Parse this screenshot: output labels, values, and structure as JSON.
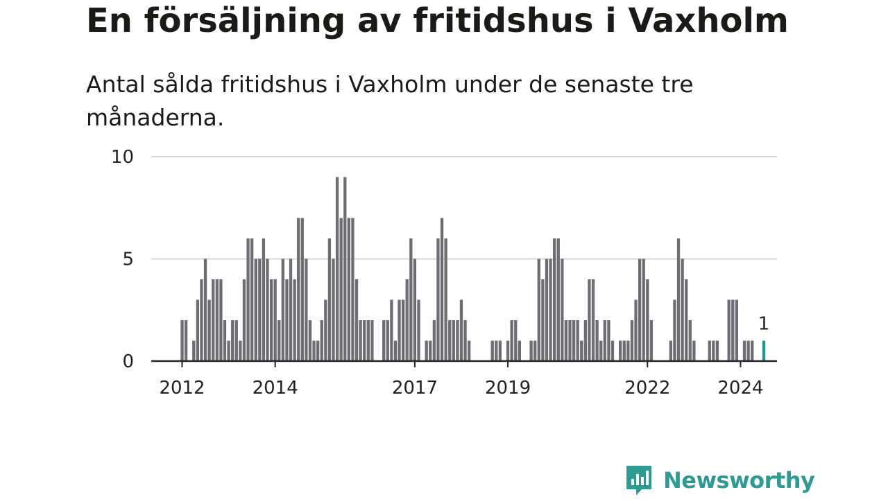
{
  "title": "En försäljning av fritidshus i Vaxholm",
  "subtitle": "Antal sålda fritidshus i Vaxholm under de senaste tre månaderna.",
  "logo": {
    "text": "Newsworthy",
    "icon": "bar-chart-speech-bubble-icon"
  },
  "colors": {
    "bar": "#6e6d74",
    "highlight": "#1a9a93",
    "grid": "#d9d9d9",
    "axis": "#222222",
    "brand": "#2e9a91"
  },
  "chart_data": {
    "type": "bar",
    "frequency": "monthly",
    "start": "2012-01",
    "ylim": [
      0,
      10
    ],
    "yticks": [
      0,
      5,
      10
    ],
    "xticks": [
      "2012",
      "2014",
      "2017",
      "2019",
      "2022",
      "2024"
    ],
    "values": [
      2,
      2,
      0,
      1,
      3,
      4,
      5,
      3,
      4,
      4,
      4,
      2,
      1,
      2,
      2,
      1,
      4,
      6,
      6,
      5,
      5,
      6,
      5,
      4,
      4,
      2,
      5,
      4,
      5,
      4,
      7,
      7,
      5,
      2,
      1,
      1,
      2,
      3,
      6,
      5,
      9,
      7,
      9,
      7,
      7,
      4,
      2,
      2,
      2,
      2,
      0,
      0,
      2,
      2,
      3,
      1,
      3,
      3,
      4,
      6,
      5,
      3,
      0,
      1,
      1,
      2,
      6,
      7,
      6,
      2,
      2,
      2,
      3,
      2,
      1,
      0,
      0,
      0,
      0,
      0,
      1,
      1,
      1,
      0,
      1,
      2,
      2,
      1,
      0,
      0,
      1,
      1,
      5,
      4,
      5,
      5,
      6,
      6,
      5,
      2,
      2,
      2,
      2,
      1,
      2,
      4,
      4,
      2,
      1,
      2,
      2,
      1,
      0,
      1,
      1,
      1,
      2,
      3,
      5,
      5,
      4,
      2,
      0,
      0,
      0,
      0,
      1,
      3,
      6,
      5,
      4,
      2,
      1,
      0,
      0,
      0,
      1,
      1,
      1,
      0,
      0,
      3,
      3,
      3,
      0,
      1,
      1,
      1,
      0,
      0,
      1
    ],
    "highlight_last": true,
    "data_label": "1"
  }
}
